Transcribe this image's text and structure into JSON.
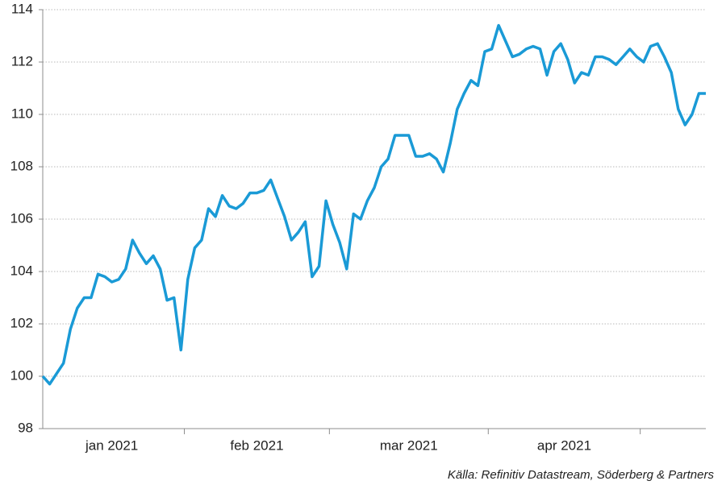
{
  "chart_data": {
    "type": "line",
    "x": [
      "jan 2021",
      "jan 2021",
      "jan 2021",
      "jan 2021",
      "jan 2021",
      "jan 2021",
      "jan 2021",
      "jan 2021",
      "jan 2021",
      "jan 2021",
      "jan 2021",
      "jan 2021",
      "jan 2021",
      "jan 2021",
      "jan 2021",
      "jan 2021",
      "jan 2021",
      "jan 2021",
      "jan 2021",
      "jan 2021",
      "jan 2021",
      "feb 2021",
      "feb 2021",
      "feb 2021",
      "feb 2021",
      "feb 2021",
      "feb 2021",
      "feb 2021",
      "feb 2021",
      "feb 2021",
      "feb 2021",
      "feb 2021",
      "feb 2021",
      "feb 2021",
      "feb 2021",
      "feb 2021",
      "feb 2021",
      "feb 2021",
      "feb 2021",
      "feb 2021",
      "feb 2021",
      "feb 2021",
      "mar 2021",
      "mar 2021",
      "mar 2021",
      "mar 2021",
      "mar 2021",
      "mar 2021",
      "mar 2021",
      "mar 2021",
      "mar 2021",
      "mar 2021",
      "mar 2021",
      "mar 2021",
      "mar 2021",
      "mar 2021",
      "mar 2021",
      "mar 2021",
      "mar 2021",
      "mar 2021",
      "mar 2021",
      "mar 2021",
      "mar 2021",
      "mar 2021",
      "mar 2021",
      "apr 2021",
      "apr 2021",
      "apr 2021",
      "apr 2021",
      "apr 2021",
      "apr 2021",
      "apr 2021",
      "apr 2021",
      "apr 2021",
      "apr 2021",
      "apr 2021",
      "apr 2021",
      "apr 2021",
      "apr 2021",
      "apr 2021",
      "apr 2021",
      "apr 2021",
      "apr 2021",
      "apr 2021",
      "apr 2021",
      "apr 2021",
      "apr 2021",
      null,
      null,
      null,
      null,
      null,
      null,
      null,
      null,
      null,
      null
    ],
    "values": [
      100.0,
      99.7,
      100.1,
      100.5,
      101.8,
      102.6,
      103.0,
      103.0,
      103.9,
      103.8,
      103.6,
      103.7,
      104.1,
      105.2,
      104.7,
      104.3,
      104.6,
      104.1,
      102.9,
      103.0,
      101.0,
      103.7,
      104.9,
      105.2,
      106.4,
      106.1,
      106.9,
      106.5,
      106.4,
      106.6,
      107.0,
      107.0,
      107.1,
      107.5,
      106.8,
      106.1,
      105.2,
      105.5,
      105.9,
      103.8,
      104.2,
      106.7,
      105.8,
      105.1,
      104.1,
      106.2,
      106.0,
      106.7,
      107.2,
      108.0,
      108.3,
      109.2,
      109.2,
      109.2,
      108.4,
      108.4,
      108.5,
      108.3,
      107.8,
      108.9,
      110.2,
      110.8,
      111.3,
      111.1,
      112.4,
      112.5,
      113.4,
      112.8,
      112.2,
      112.3,
      112.5,
      112.6,
      112.5,
      111.5,
      112.4,
      112.7,
      112.1,
      111.2,
      111.6,
      111.5,
      112.2,
      112.2,
      112.1,
      111.9,
      112.2,
      112.5,
      112.2,
      112.0,
      112.6,
      112.7,
      112.2,
      111.6,
      110.2,
      109.6,
      110.0,
      110.8,
      110.8
    ],
    "color": "#1a9ad6",
    "ylim": [
      98,
      114
    ],
    "yticks": [
      98,
      100,
      102,
      104,
      106,
      108,
      110,
      112,
      114
    ],
    "grid": true,
    "source": "Källa: Refinitiv Datastream, Söderberg & Partners"
  }
}
